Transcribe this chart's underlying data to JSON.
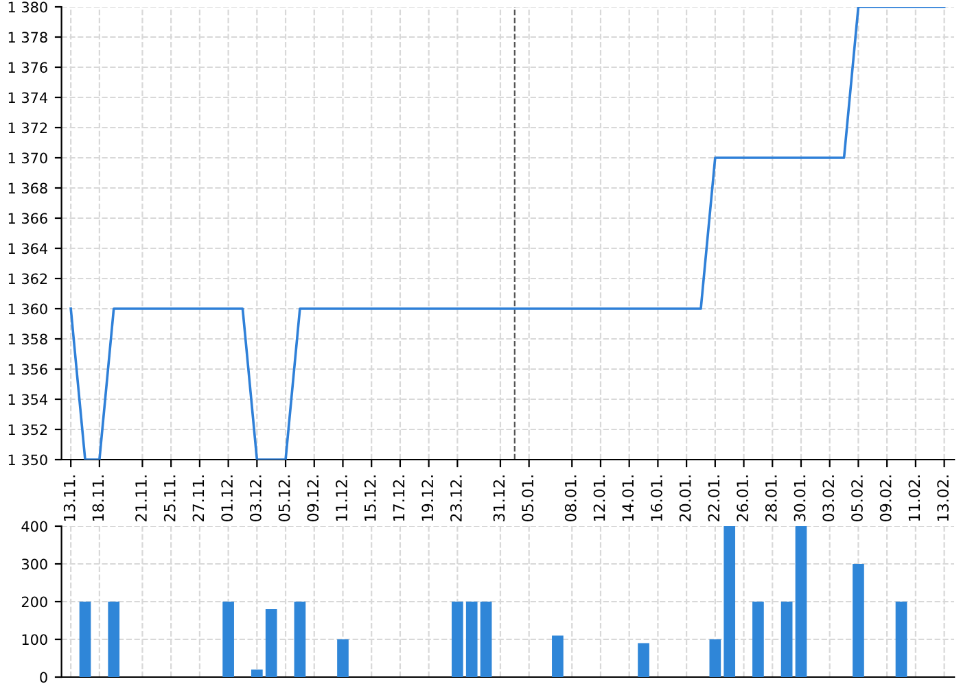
{
  "chart_data": [
    {
      "type": "line",
      "categories": [
        "13.11.",
        null,
        "18.11.",
        null,
        null,
        "21.11.",
        null,
        "25.11.",
        null,
        "27.11.",
        null,
        "01.12.",
        null,
        "03.12.",
        null,
        "05.12.",
        null,
        "09.12.",
        null,
        "11.12.",
        null,
        "15.12.",
        null,
        "17.12.",
        null,
        "19.12.",
        null,
        "23.12.",
        null,
        null,
        "31.12.",
        null,
        "05.01.",
        null,
        null,
        "08.01.",
        null,
        "12.01.",
        null,
        "14.01.",
        null,
        "16.01.",
        null,
        "20.01.",
        null,
        "22.01.",
        null,
        "26.01.",
        null,
        "28.01.",
        null,
        "30.01.",
        null,
        "03.02.",
        null,
        "05.02.",
        null,
        "09.02.",
        null,
        "11.02.",
        null,
        "13.02."
      ],
      "series": [
        {
          "color": "#2f80d8",
          "values": [
            1360,
            1350,
            1350,
            1360,
            1360,
            1360,
            1360,
            1360,
            1360,
            1360,
            1360,
            1360,
            1360,
            1350,
            1350,
            1350,
            1360,
            1360,
            1360,
            1360,
            1360,
            1360,
            1360,
            1360,
            1360,
            1360,
            1360,
            1360,
            1360,
            1360,
            1360,
            1360,
            1360,
            1360,
            1360,
            1360,
            1360,
            1360,
            1360,
            1360,
            1360,
            1360,
            1360,
            1360,
            1360,
            1370,
            1370,
            1370,
            1370,
            1370,
            1370,
            1370,
            1370,
            1370,
            1370,
            1380,
            1380,
            1380,
            1380,
            1380,
            1380,
            1380
          ]
        }
      ],
      "ylim": [
        1350,
        1380
      ],
      "yticks": [
        {
          "value": 1350,
          "label": "1 350"
        },
        {
          "value": 1352,
          "label": "1 352"
        },
        {
          "value": 1354,
          "label": "1 354"
        },
        {
          "value": 1356,
          "label": "1 356"
        },
        {
          "value": 1358,
          "label": "1 358"
        },
        {
          "value": 1360,
          "label": "1 360"
        },
        {
          "value": 1362,
          "label": "1 362"
        },
        {
          "value": 1364,
          "label": "1 364"
        },
        {
          "value": 1366,
          "label": "1 366"
        },
        {
          "value": 1368,
          "label": "1 368"
        },
        {
          "value": 1370,
          "label": "1 370"
        },
        {
          "value": 1372,
          "label": "1 372"
        },
        {
          "value": 1374,
          "label": "1 374"
        },
        {
          "value": 1376,
          "label": "1 376"
        },
        {
          "value": 1378,
          "label": "1 378"
        },
        {
          "value": 1380,
          "label": "1 380"
        }
      ],
      "grid": true
    },
    {
      "type": "bar",
      "categories": [
        "13.11.",
        null,
        "18.11.",
        null,
        null,
        "21.11.",
        null,
        "25.11.",
        null,
        "27.11.",
        null,
        "01.12.",
        null,
        "03.12.",
        null,
        "05.12.",
        null,
        "09.12.",
        null,
        "11.12.",
        null,
        "15.12.",
        null,
        "17.12.",
        null,
        "19.12.",
        null,
        "23.12.",
        null,
        null,
        "31.12.",
        null,
        "05.01.",
        null,
        null,
        "08.01.",
        null,
        "12.01.",
        null,
        "14.01.",
        null,
        "16.01.",
        null,
        "20.01.",
        null,
        "22.01.",
        null,
        "26.01.",
        null,
        "28.01.",
        null,
        "30.01.",
        null,
        "03.02.",
        null,
        "05.02.",
        null,
        "09.02.",
        null,
        "11.02.",
        null,
        "13.02."
      ],
      "series": [
        {
          "color": "#2f86d8",
          "values": [
            null,
            200,
            null,
            200,
            null,
            null,
            null,
            null,
            null,
            null,
            null,
            200,
            null,
            20,
            180,
            null,
            200,
            null,
            null,
            100,
            null,
            null,
            null,
            null,
            null,
            null,
            null,
            200,
            200,
            200,
            null,
            null,
            null,
            null,
            110,
            null,
            null,
            null,
            null,
            null,
            90,
            null,
            null,
            null,
            null,
            100,
            400,
            null,
            200,
            null,
            200,
            400,
            null,
            null,
            null,
            300,
            null,
            null,
            200,
            null,
            null,
            null
          ]
        }
      ],
      "ylim": [
        0,
        400
      ],
      "yticks": [
        0,
        100,
        200,
        300,
        400
      ],
      "grid": true,
      "tick_labels": "y"
    }
  ]
}
